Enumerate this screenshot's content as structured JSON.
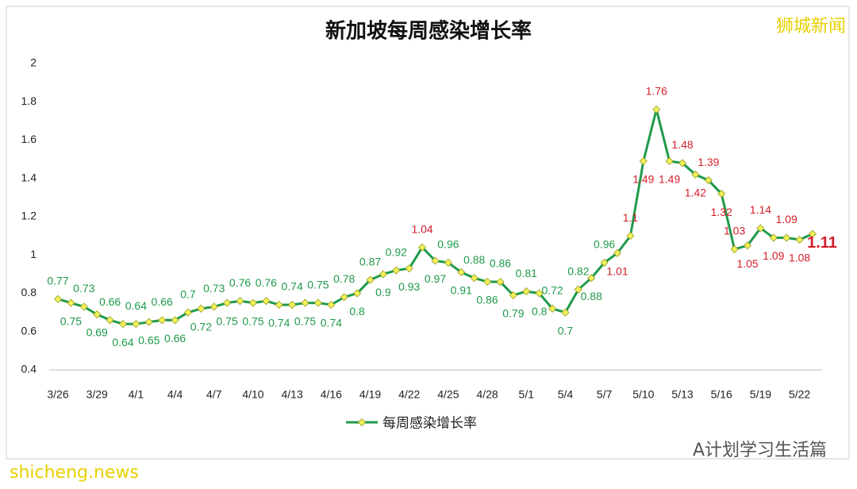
{
  "chart_data": {
    "type": "line",
    "title": "新加坡每周感染增长率",
    "watermark": "狮城新闻",
    "footer_right": "A计划学习生活篇",
    "footer_left": "shicheng.news",
    "categories": [
      "3/26",
      null,
      null,
      "3/29",
      null,
      null,
      "4/1",
      null,
      null,
      "4/4",
      null,
      null,
      "4/7",
      null,
      null,
      "4/10",
      null,
      null,
      "4/13",
      null,
      null,
      "4/16",
      null,
      null,
      "4/19",
      null,
      null,
      "4/22",
      null,
      null,
      "4/25",
      null,
      null,
      "4/28",
      null,
      null,
      "5/1",
      null,
      null,
      "5/4",
      null,
      null,
      "5/7",
      null,
      null,
      "5/10",
      null,
      null,
      "5/13",
      null,
      null,
      "5/16",
      null,
      null,
      "5/19",
      null,
      null,
      "5/22",
      null
    ],
    "series": [
      {
        "name": "每周感染增长率",
        "color": "#1f9a4a",
        "marker_color": "#f0f05a",
        "values": [
          0.77,
          0.75,
          0.73,
          0.69,
          0.66,
          0.64,
          0.64,
          0.65,
          0.66,
          0.66,
          0.7,
          0.72,
          0.73,
          0.75,
          0.76,
          0.75,
          0.76,
          0.74,
          0.74,
          0.75,
          0.75,
          0.74,
          0.78,
          0.8,
          0.87,
          0.9,
          0.92,
          0.93,
          1.04,
          0.97,
          0.96,
          0.91,
          0.88,
          0.86,
          0.86,
          0.79,
          0.81,
          0.8,
          0.72,
          0.7,
          0.82,
          0.88,
          0.96,
          1.01,
          1.1,
          1.49,
          1.76,
          1.49,
          1.48,
          1.42,
          1.39,
          1.32,
          1.03,
          1.05,
          1.14,
          1.09,
          1.09,
          1.08,
          1.11
        ],
        "label_colors": [
          "#1f9a4a",
          "#1f9a4a",
          "#1f9a4a",
          "#1f9a4a",
          "#1f9a4a",
          "#1f9a4a",
          "#1f9a4a",
          "#1f9a4a",
          "#1f9a4a",
          "#1f9a4a",
          "#1f9a4a",
          "#1f9a4a",
          "#1f9a4a",
          "#1f9a4a",
          "#1f9a4a",
          "#1f9a4a",
          "#1f9a4a",
          "#1f9a4a",
          "#1f9a4a",
          "#1f9a4a",
          "#1f9a4a",
          "#1f9a4a",
          "#1f9a4a",
          "#1f9a4a",
          "#1f9a4a",
          "#1f9a4a",
          "#1f9a4a",
          "#1f9a4a",
          "#d41e2a",
          "#1f9a4a",
          "#1f9a4a",
          "#1f9a4a",
          "#1f9a4a",
          "#1f9a4a",
          "#1f9a4a",
          "#1f9a4a",
          "#1f9a4a",
          "#1f9a4a",
          "#1f9a4a",
          "#1f9a4a",
          "#1f9a4a",
          "#1f9a4a",
          "#1f9a4a",
          "#d41e2a",
          "#d41e2a",
          "#d41e2a",
          "#d41e2a",
          "#d41e2a",
          "#d41e2a",
          "#d41e2a",
          "#d41e2a",
          "#d41e2a",
          "#d41e2a",
          "#d41e2a",
          "#d41e2a",
          "#d41e2a",
          "#d41e2a",
          "#d41e2a",
          "#d41e2a"
        ]
      }
    ],
    "ylim": [
      0.4,
      2
    ],
    "yticks": [
      0.4,
      0.6,
      0.8,
      1,
      1.2,
      1.4,
      1.6,
      1.8,
      2
    ],
    "grid": false,
    "highlight_last": true,
    "legend": "bottom"
  }
}
